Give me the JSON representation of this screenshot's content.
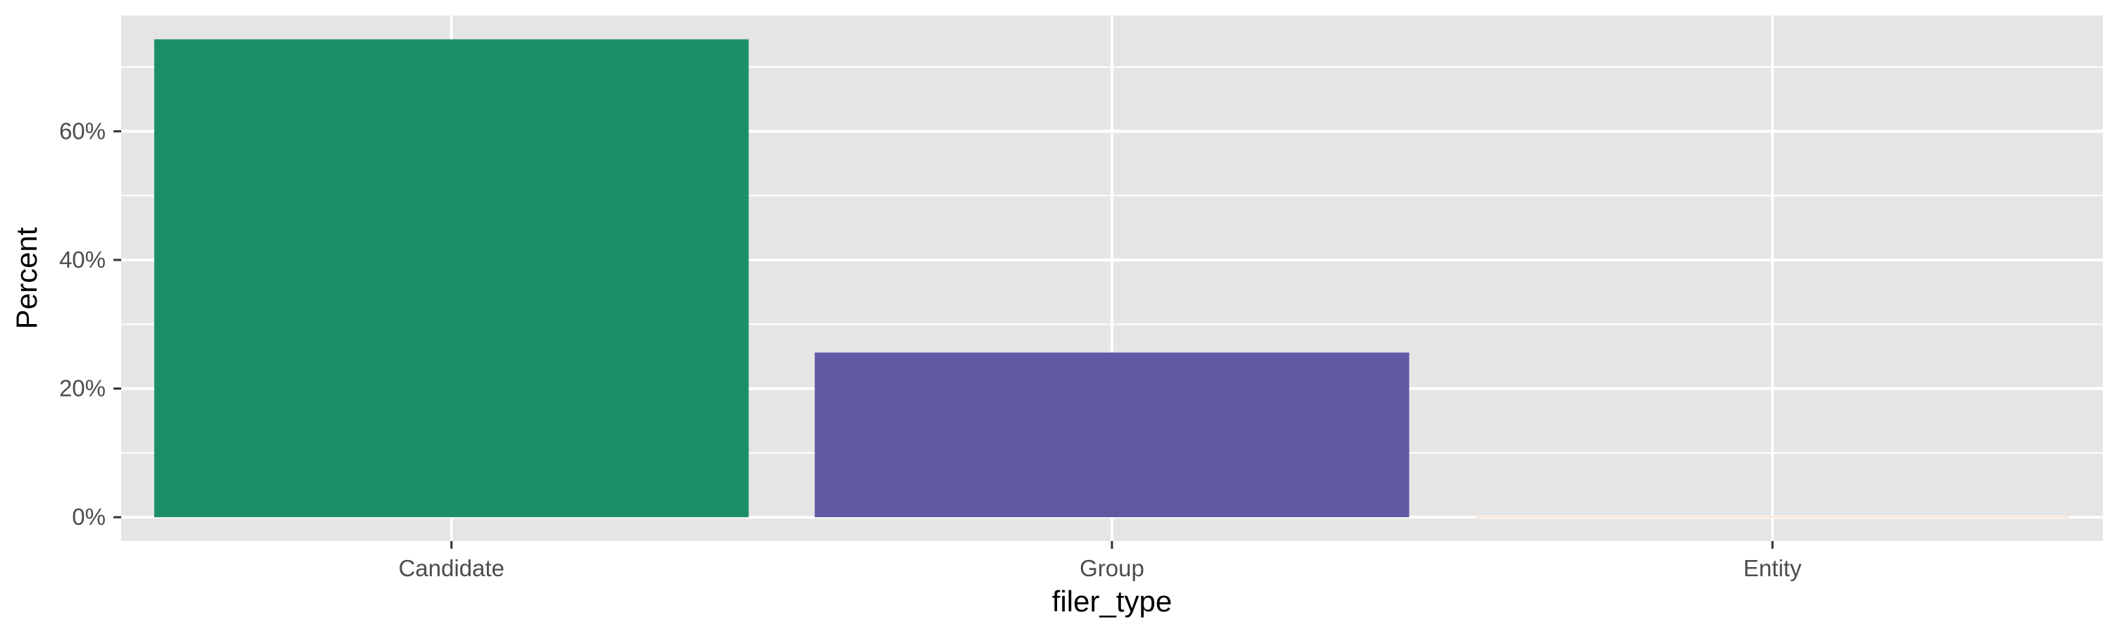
{
  "chart_data": {
    "type": "bar",
    "title": "",
    "xlabel": "filer_type",
    "ylabel": "Percent",
    "categories": [
      "Candidate",
      "Group",
      "Entity"
    ],
    "values": [
      74.3,
      25.6,
      0.04
    ],
    "colors": [
      "#1b9066",
      "#6159a4",
      "#d95f02"
    ],
    "ylim": [
      -3.7,
      78
    ],
    "yticks": [
      0,
      20,
      40,
      60
    ],
    "ytick_labels": [
      "0%",
      "20%",
      "40%",
      "60%"
    ],
    "grid": true,
    "panel_background": "#e5e5e5",
    "grid_color": "#ffffff"
  }
}
